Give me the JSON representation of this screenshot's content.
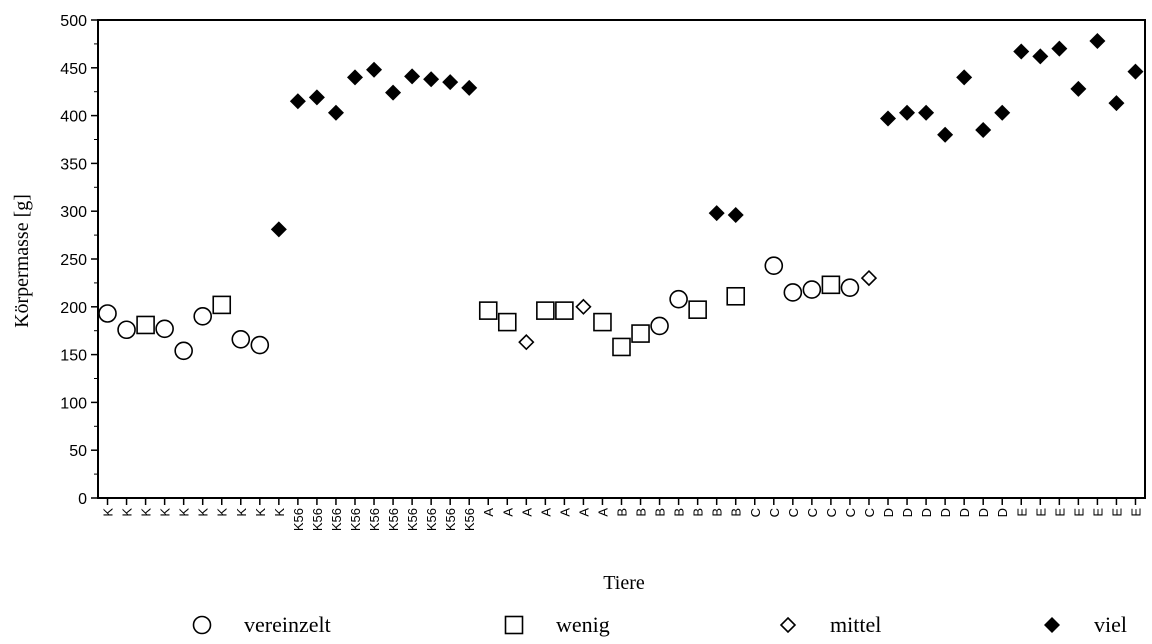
{
  "chart_data": {
    "type": "scatter",
    "xlabel": "Tiere",
    "ylabel": "Körpermasse [g]",
    "ylim": [
      0,
      500
    ],
    "yticks": [
      0,
      50,
      100,
      150,
      200,
      250,
      300,
      350,
      400,
      450,
      500
    ],
    "grid": false,
    "legend_position": "bottom",
    "categories": [
      "K",
      "K",
      "K",
      "K",
      "K",
      "K",
      "K",
      "K",
      "K",
      "K",
      "K56",
      "K56",
      "K56",
      "K56",
      "K56",
      "K56",
      "K56",
      "K56",
      "K56",
      "K56",
      "A",
      "A",
      "A",
      "A",
      "A",
      "A",
      "A",
      "B",
      "B",
      "B",
      "B",
      "B",
      "B",
      "B",
      "C",
      "C",
      "C",
      "C",
      "C",
      "C",
      "C",
      "D",
      "D",
      "D",
      "D",
      "D",
      "D",
      "D",
      "E",
      "E",
      "E",
      "E",
      "E",
      "E",
      "E"
    ],
    "series": [
      {
        "name": "vereinzelt",
        "marker": "circle-open",
        "points": [
          [
            0,
            193
          ],
          [
            1,
            176
          ],
          [
            3,
            177
          ],
          [
            4,
            154
          ],
          [
            5,
            190
          ],
          [
            7,
            166
          ],
          [
            8,
            160
          ],
          [
            29,
            180
          ],
          [
            30,
            208
          ],
          [
            35,
            243
          ],
          [
            36,
            215
          ],
          [
            37,
            218
          ],
          [
            39,
            220
          ]
        ]
      },
      {
        "name": "wenig",
        "marker": "square-open",
        "points": [
          [
            2,
            181
          ],
          [
            6,
            202
          ],
          [
            20,
            196
          ],
          [
            21,
            184
          ],
          [
            23,
            196
          ],
          [
            24,
            196
          ],
          [
            26,
            184
          ],
          [
            27,
            158
          ],
          [
            28,
            172
          ],
          [
            31,
            197
          ],
          [
            33,
            211
          ],
          [
            38,
            223
          ]
        ]
      },
      {
        "name": "mittel",
        "marker": "diamond-open",
        "points": [
          [
            22,
            163
          ],
          [
            25,
            200
          ],
          [
            40,
            230
          ]
        ]
      },
      {
        "name": "viel",
        "marker": "diamond-filled",
        "points": [
          [
            9,
            281
          ],
          [
            10,
            415
          ],
          [
            11,
            419
          ],
          [
            12,
            403
          ],
          [
            13,
            440
          ],
          [
            14,
            448
          ],
          [
            15,
            424
          ],
          [
            16,
            441
          ],
          [
            17,
            438
          ],
          [
            18,
            435
          ],
          [
            19,
            429
          ],
          [
            32,
            298
          ],
          [
            33,
            296
          ],
          [
            41,
            397
          ],
          [
            42,
            403
          ],
          [
            43,
            403
          ],
          [
            44,
            380
          ],
          [
            45,
            440
          ],
          [
            46,
            385
          ],
          [
            47,
            403
          ],
          [
            48,
            467
          ],
          [
            49,
            462
          ],
          [
            50,
            470
          ],
          [
            51,
            428
          ],
          [
            52,
            478
          ],
          [
            53,
            413
          ],
          [
            54,
            446
          ]
        ]
      }
    ]
  }
}
